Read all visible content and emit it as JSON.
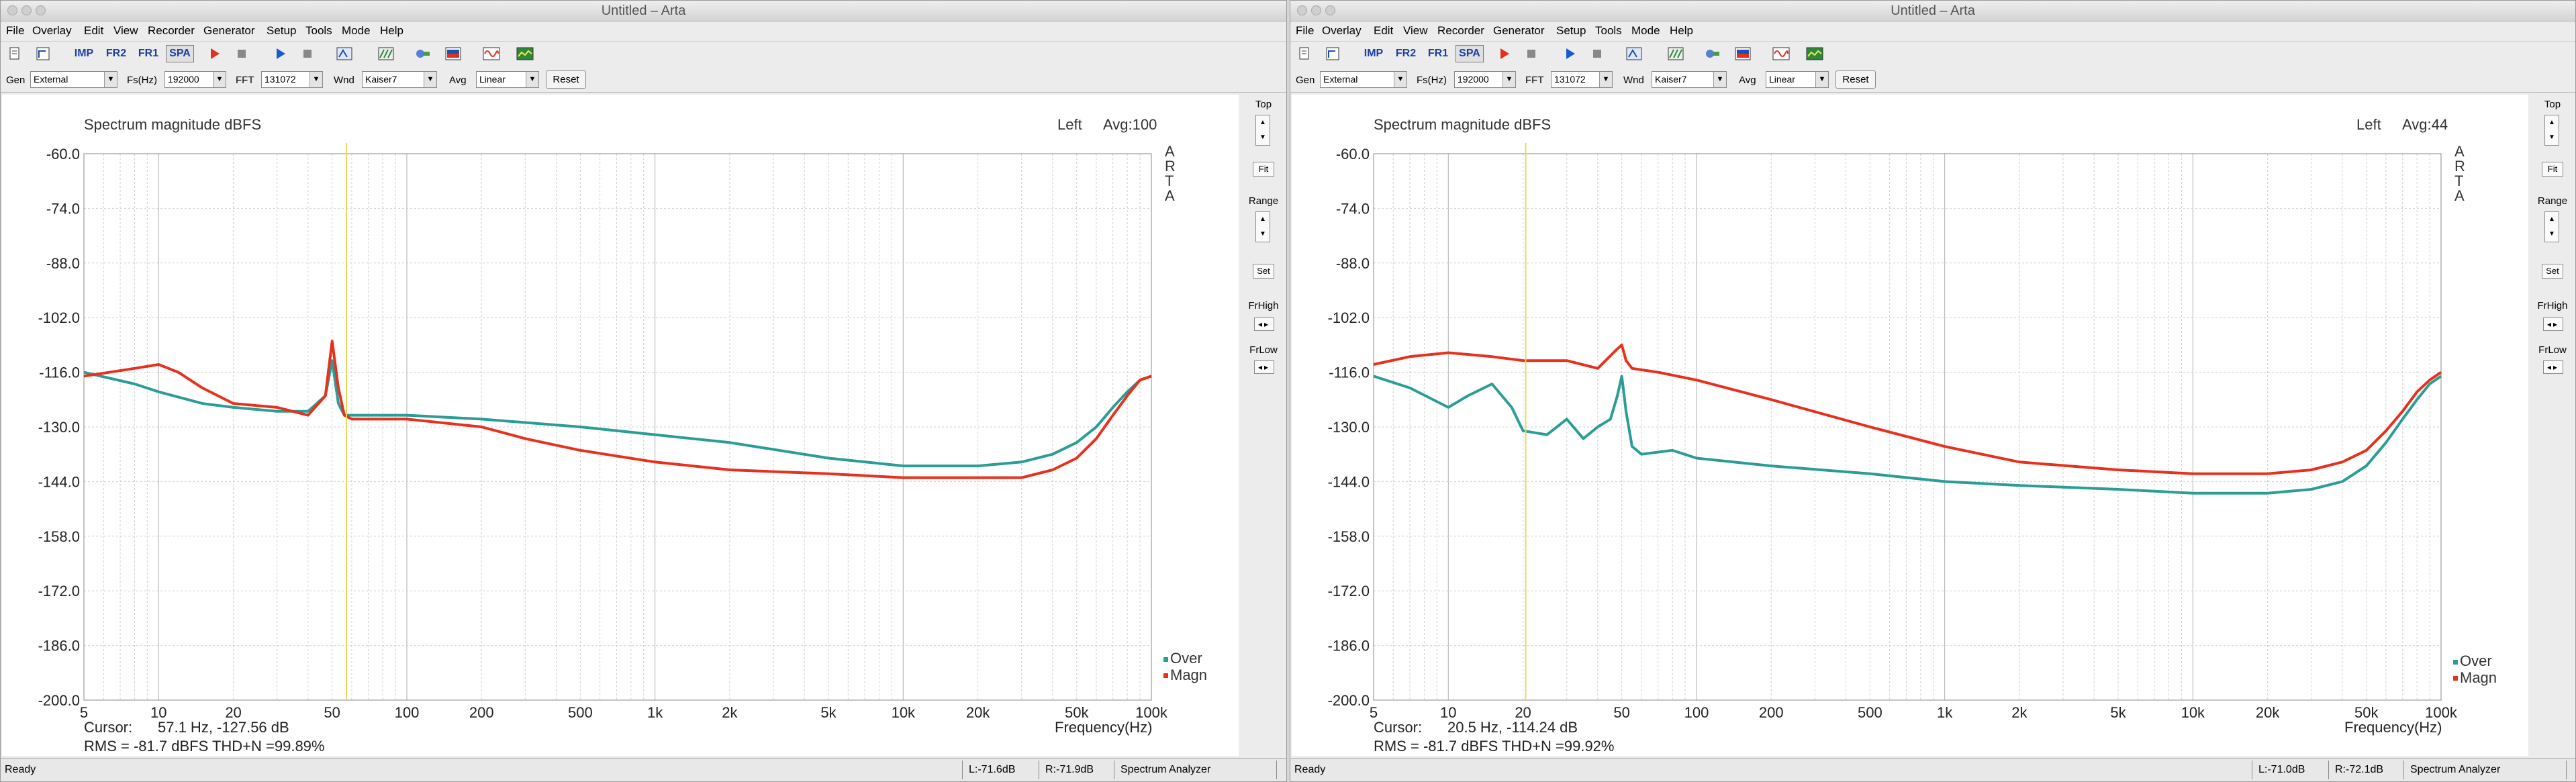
{
  "colors": {
    "over": "#2a9d96",
    "magn": "#e8301c",
    "cursor": "#e8d95a",
    "rms": "#e8301c",
    "grid": "#cfcfcf"
  },
  "menu": [
    "File",
    "Overlay",
    "Edit",
    "View",
    "Recorder",
    "Generator",
    "Setup",
    "Tools",
    "Mode",
    "Help"
  ],
  "toolbar": {
    "icons": [
      "new-file-icon",
      "select-arrow-icon",
      "imp-mode-icon",
      "fr2-mode-icon",
      "fr1-mode-icon",
      "spa-mode-icon",
      "record-icon",
      "stop-icon",
      "play-icon",
      "stop-play-icon",
      "abc-icon",
      "pattern-icon",
      "link-icon",
      "flag-icon",
      "wave-icon",
      "spectrum-icon"
    ],
    "imp": "IMP",
    "fr2": "FR2",
    "fr1": "FR1",
    "spa": "SPA"
  },
  "options": {
    "gen_label": "Gen",
    "fs_label": "Fs(Hz)",
    "fft_label": "FFT",
    "wnd_label": "Wnd",
    "avg_label": "Avg",
    "reset_label": "Reset"
  },
  "side": {
    "top": "Top",
    "fit": "Fit",
    "range": "Range",
    "set": "Set",
    "frhigh": "FrHigh",
    "frlow": "FrLow"
  },
  "axis": {
    "y_ticks": [
      "-60.0",
      "-74.0",
      "-88.0",
      "-102.0",
      "-116.0",
      "-130.0",
      "-144.0",
      "-158.0",
      "-172.0",
      "-186.0",
      "-200.0"
    ],
    "x_ticks": [
      "5",
      "10",
      "20",
      "50",
      "100",
      "200",
      "500",
      "1k",
      "2k",
      "5k",
      "10k",
      "20k",
      "50k",
      "100k"
    ],
    "x_unit": "Frequency(Hz)",
    "arta": [
      "A",
      "R",
      "T",
      "A"
    ]
  },
  "legend": {
    "over": "Over",
    "magn": "Magn"
  },
  "windows": [
    {
      "title": "Untitled – Arta",
      "gen": "External",
      "fs": "192000",
      "fft": "131072",
      "wnd": "Kaiser7",
      "avg": "Linear",
      "plot_title": "Spectrum magnitude dBFS",
      "channel": "Left",
      "avg_info": "Avg:100",
      "cursor_label": "Cursor:",
      "cursor_value": "57.1 Hz, -127.56 dB",
      "rms": "RMS =  -81.7 dBFS   THD+N =99.89%",
      "status": {
        "ready": "Ready",
        "l": "L:-71.6dB",
        "r": "R:-71.9dB",
        "mode": "Spectrum Analyzer"
      }
    },
    {
      "title": "Untitled – Arta",
      "gen": "External",
      "fs": "192000",
      "fft": "131072",
      "wnd": "Kaiser7",
      "avg": "Linear",
      "plot_title": "Spectrum magnitude dBFS",
      "channel": "Left",
      "avg_info": "Avg:44",
      "cursor_label": "Cursor:",
      "cursor_value": "20.5 Hz, -114.24 dB",
      "rms": "RMS =  -81.7 dBFS   THD+N =99.92%",
      "status": {
        "ready": "Ready",
        "l": "L:-71.0dB",
        "r": "R:-72.1dB",
        "mode": "Spectrum Analyzer"
      }
    }
  ],
  "chart_data": [
    {
      "type": "line",
      "title": "Spectrum magnitude dBFS",
      "xlabel": "Frequency(Hz)",
      "ylabel": "",
      "xscale": "log",
      "xlim": [
        5,
        100000
      ],
      "ylim": [
        -200,
        -60
      ],
      "grid": true,
      "legend": "bottom-right",
      "cursor_x": 57.1,
      "series": [
        {
          "name": "Over",
          "x": [
            5,
            8,
            10,
            15,
            20,
            30,
            40,
            47,
            50,
            53,
            56,
            60,
            100,
            200,
            500,
            1000,
            2000,
            5000,
            10000,
            20000,
            30000,
            40000,
            50000,
            60000,
            70000,
            80000,
            90000,
            100000
          ],
          "y": [
            -116,
            -119,
            -121,
            -124,
            -125,
            -126,
            -126,
            -122,
            -113,
            -124,
            -127,
            -127,
            -127,
            -128,
            -130,
            -132,
            -134,
            -138,
            -140,
            -140,
            -139,
            -137,
            -134,
            -130,
            -125,
            -121,
            -118,
            -117
          ]
        },
        {
          "name": "Magn",
          "x": [
            5,
            8,
            10,
            12,
            15,
            20,
            30,
            40,
            47,
            50,
            53,
            56,
            60,
            100,
            200,
            300,
            500,
            1000,
            2000,
            5000,
            10000,
            20000,
            30000,
            40000,
            50000,
            60000,
            70000,
            80000,
            90000,
            100000
          ],
          "y": [
            -117,
            -115,
            -114,
            -116,
            -120,
            -124,
            -125,
            -127,
            -122,
            -108,
            -120,
            -127,
            -128,
            -128,
            -130,
            -133,
            -136,
            -139,
            -141,
            -142,
            -143,
            -143,
            -143,
            -141,
            -138,
            -133,
            -127,
            -122,
            -118,
            -117
          ]
        }
      ]
    },
    {
      "type": "line",
      "title": "Spectrum magnitude dBFS",
      "xlabel": "Frequency(Hz)",
      "ylabel": "",
      "xscale": "log",
      "xlim": [
        5,
        100000
      ],
      "ylim": [
        -200,
        -60
      ],
      "grid": true,
      "legend": "bottom-right",
      "cursor_x": 20.5,
      "series": [
        {
          "name": "Over",
          "x": [
            5,
            7,
            10,
            12,
            15,
            18,
            20,
            25,
            30,
            35,
            40,
            45,
            48,
            50,
            52,
            55,
            60,
            80,
            100,
            200,
            500,
            1000,
            2000,
            5000,
            10000,
            20000,
            30000,
            40000,
            50000,
            60000,
            70000,
            80000,
            90000,
            100000
          ],
          "y": [
            -117,
            -120,
            -125,
            -122,
            -119,
            -125,
            -131,
            -132,
            -128,
            -133,
            -130,
            -128,
            -122,
            -117,
            -126,
            -135,
            -137,
            -136,
            -138,
            -140,
            -142,
            -144,
            -145,
            -146,
            -147,
            -147,
            -146,
            -144,
            -140,
            -134,
            -128,
            -123,
            -119,
            -117
          ]
        },
        {
          "name": "Magn",
          "x": [
            5,
            7,
            10,
            15,
            20,
            30,
            40,
            48,
            50,
            52,
            55,
            70,
            100,
            200,
            500,
            1000,
            2000,
            5000,
            10000,
            20000,
            30000,
            40000,
            50000,
            60000,
            70000,
            80000,
            90000,
            100000
          ],
          "y": [
            -114,
            -112,
            -111,
            -112,
            -113,
            -113,
            -115,
            -110,
            -109,
            -113,
            -115,
            -116,
            -118,
            -123,
            -130,
            -135,
            -139,
            -141,
            -142,
            -142,
            -141,
            -139,
            -136,
            -131,
            -126,
            -121,
            -118,
            -116
          ]
        }
      ]
    }
  ]
}
